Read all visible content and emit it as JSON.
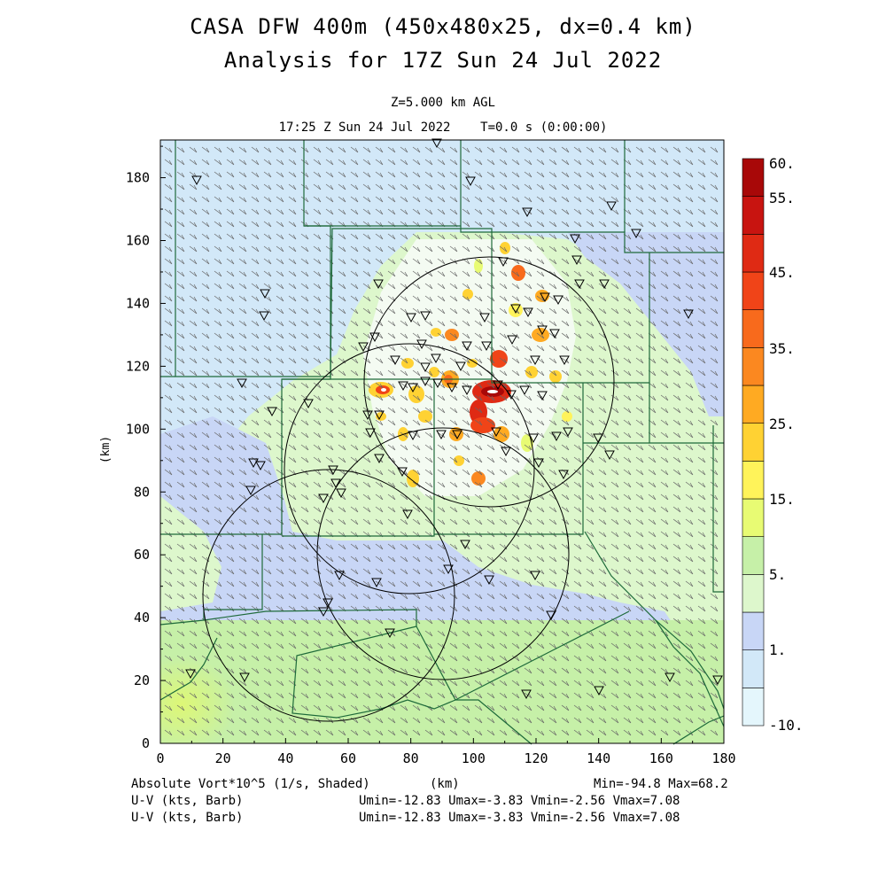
{
  "header": {
    "title_line1": "CASA DFW 400m (450x480x25, dx=0.4 km)",
    "title_line2": "Analysis for 17Z Sun 24 Jul 2022",
    "level": "Z=5.000 km AGL",
    "valid_time": "17:25 Z Sun 24 Jul 2022    T=0.0 s (0:00:00)"
  },
  "axes": {
    "x_label": "(km)",
    "y_label": "(km)",
    "x_ticks": [
      "0",
      "20",
      "40",
      "60",
      "80",
      "100",
      "120",
      "140",
      "160",
      "180"
    ],
    "y_ticks": [
      "0",
      "20",
      "40",
      "60",
      "80",
      "100",
      "120",
      "140",
      "160",
      "180"
    ],
    "x_range": [
      0,
      180
    ],
    "y_range": [
      0,
      192
    ]
  },
  "colorbar": {
    "labels": [
      "60.",
      "55.",
      "45.",
      "35.",
      "25.",
      "15.",
      "5.",
      "1.",
      "-10."
    ],
    "colors": [
      "#e4f6fc",
      "#d2e8f8",
      "#c8d6f6",
      "#ddf7cc",
      "#c6f0a8",
      "#e8fb73",
      "#fff35a",
      "#ffd233",
      "#ffaa22",
      "#fb8820",
      "#f86a1c",
      "#f04418",
      "#df2a14",
      "#c81410",
      "#a80808"
    ]
  },
  "footer": {
    "field_label": "Absolute Vort*10^5 (1/s, Shaded)",
    "units_label": "(km)",
    "minmax": "Min=-94.8 Max=68.2",
    "barb_label_1": "U-V (kts, Barb)",
    "barb_stats_1": "Umin=-12.83 Umax=-3.83 Vmin=-2.56 Vmax=7.08",
    "barb_label_2": "U-V (kts, Barb)",
    "barb_stats_2": "Umin=-12.83 Umax=-3.83 Vmin=-2.56 Vmax=7.08"
  },
  "map_colors": {
    "background": "#ddf7cc",
    "light_blue": "#d2e8f8",
    "lavender": "#c8d6f6",
    "light_green": "#c6f0a8",
    "yellow_green": "#e8fb73",
    "county_lines": "#1e6a3a",
    "barbs": "#555555"
  }
}
